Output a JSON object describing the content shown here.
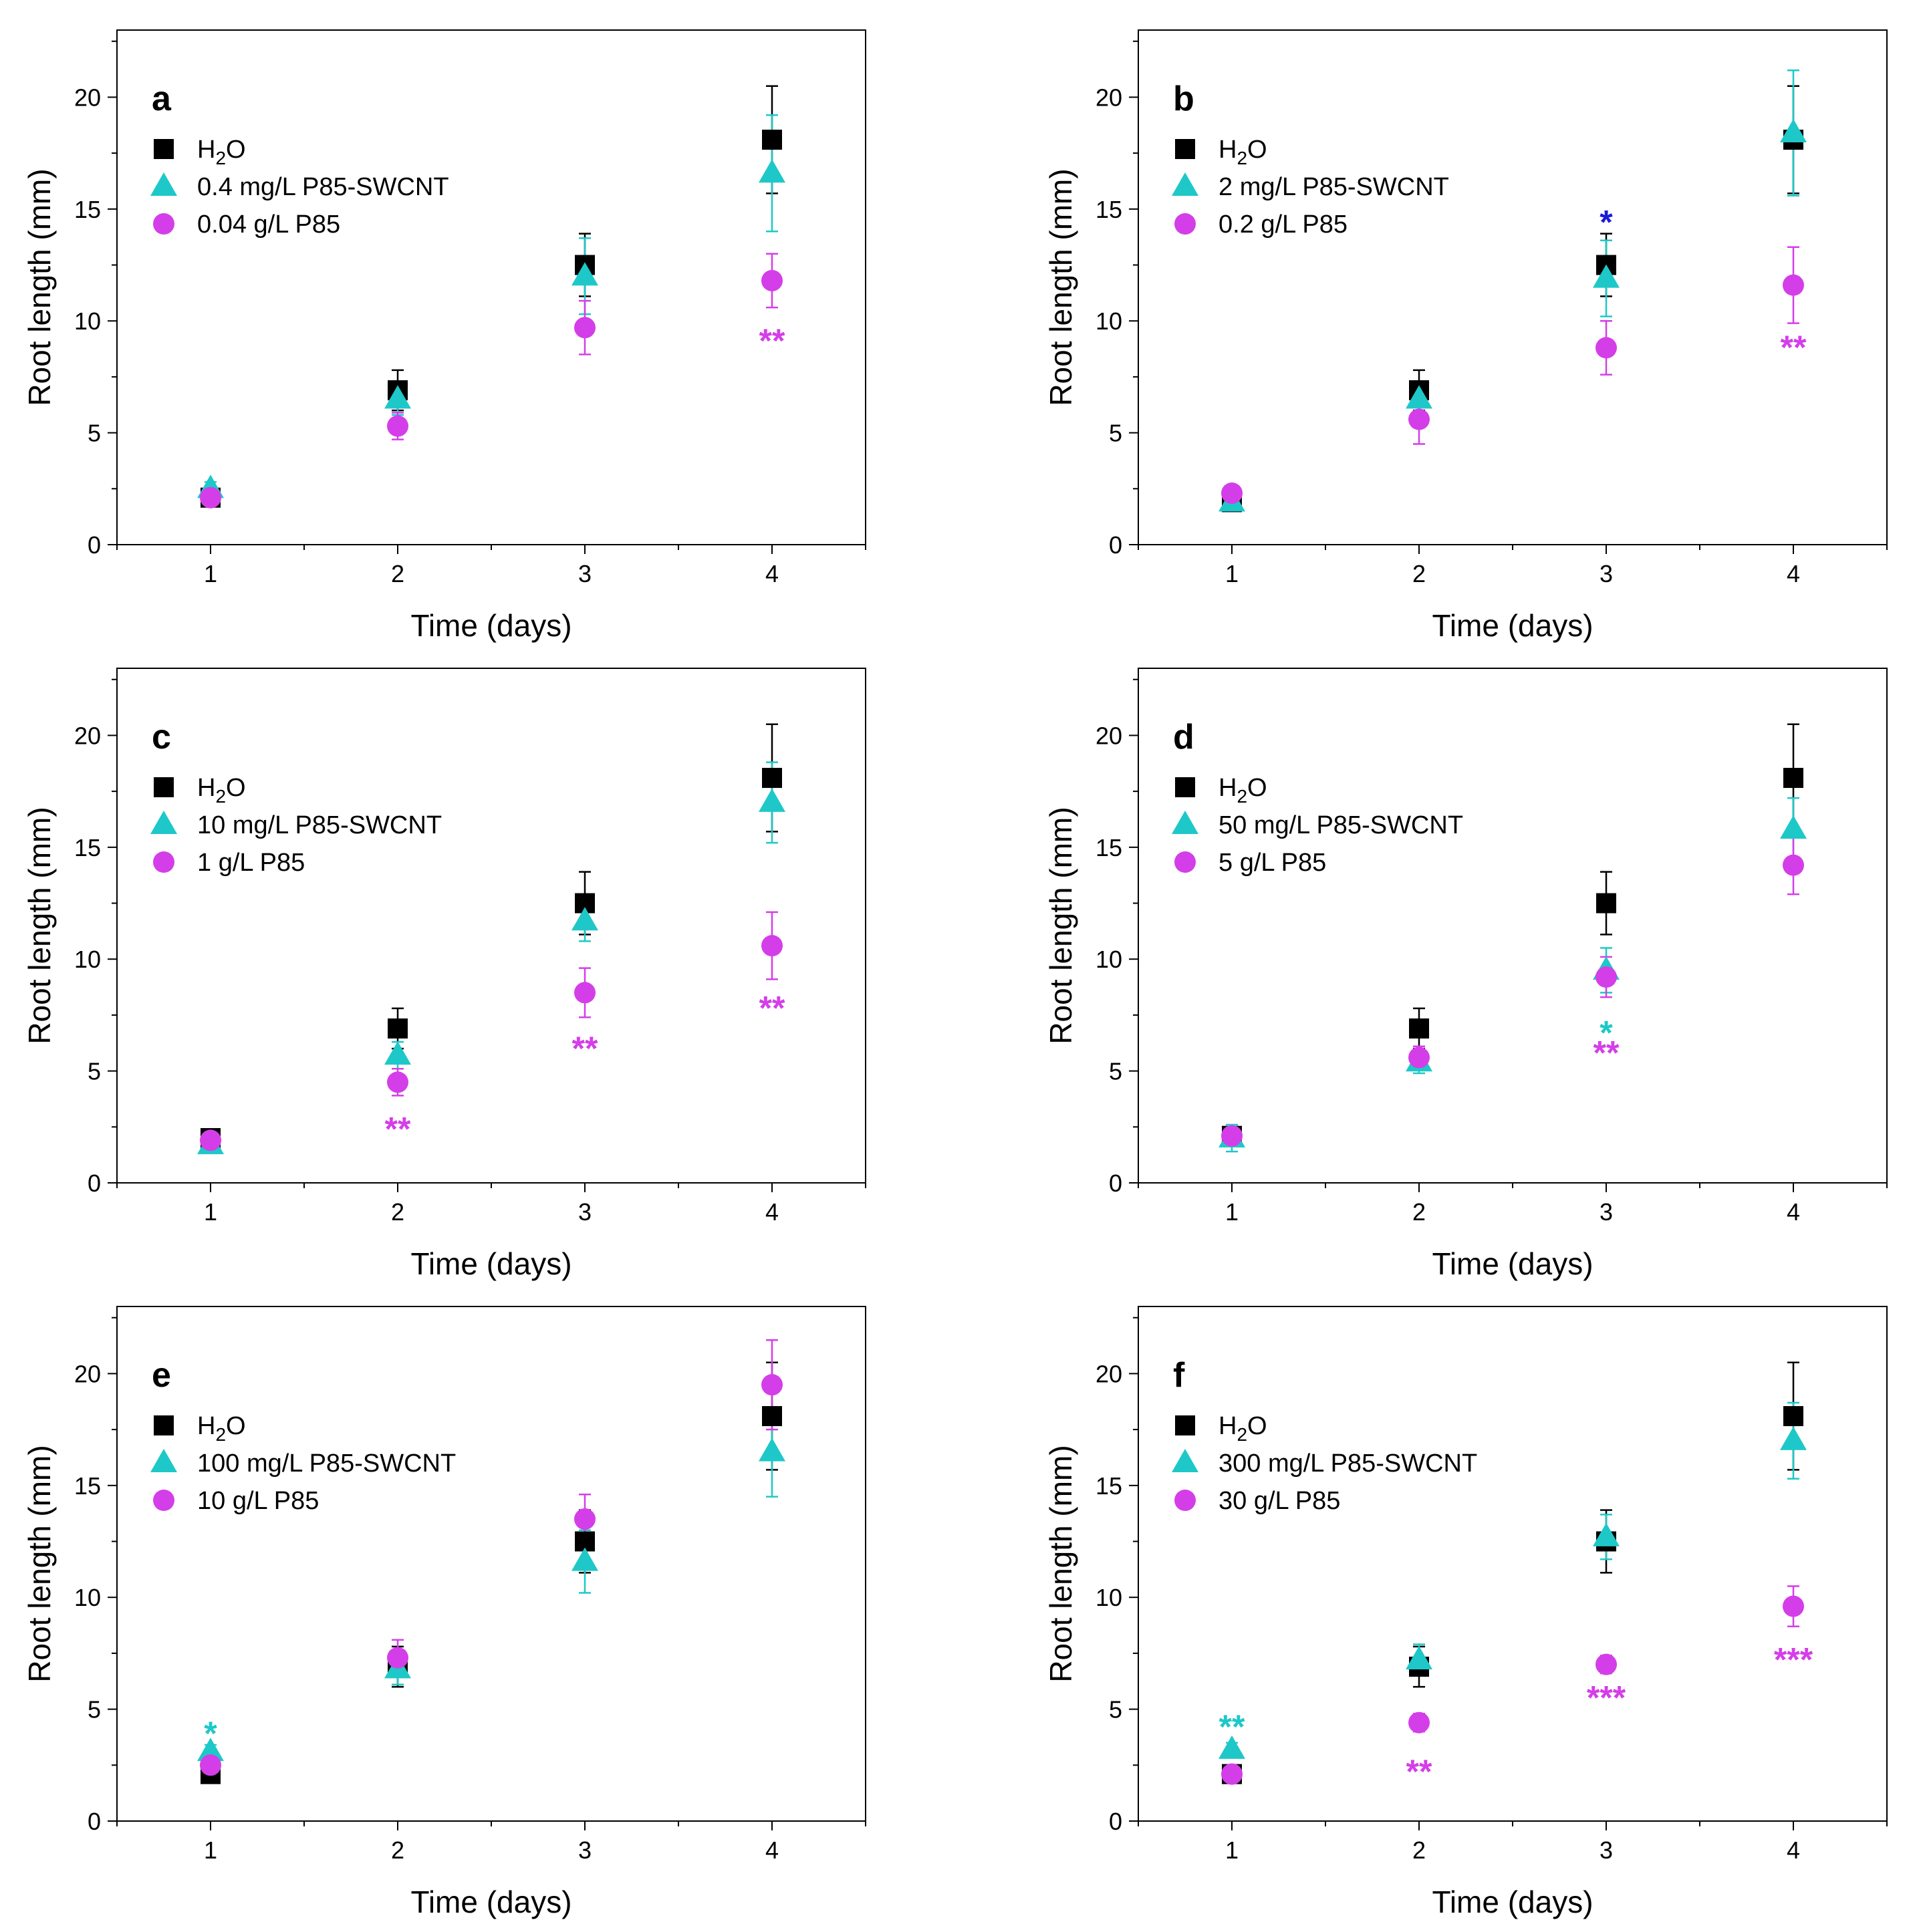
{
  "chart_data": [
    {
      "type": "scatter",
      "panel_label": "a",
      "xlabel": "Time (days)",
      "ylabel": "Root length (mm)",
      "xlim": [
        0.5,
        4.5
      ],
      "ylim": [
        0,
        23
      ],
      "x_ticks": [
        1,
        2,
        3,
        4
      ],
      "y_ticks": [
        0,
        5,
        10,
        15,
        20
      ],
      "legend_placement": "top-left",
      "series": [
        {
          "name": "H₂O",
          "marker": "square",
          "color": "#000000",
          "x": [
            1,
            2,
            3,
            4
          ],
          "y": [
            2.1,
            6.9,
            12.5,
            18.1
          ],
          "err": [
            0.3,
            0.9,
            1.4,
            2.4
          ]
        },
        {
          "name": "0.4 mg/L P85-SWCNT",
          "marker": "triangle",
          "color": "#1ec8c8",
          "x": [
            1,
            2,
            3,
            4
          ],
          "y": [
            2.5,
            6.5,
            12.0,
            16.6
          ],
          "err": [
            0.3,
            0.7,
            1.7,
            2.6
          ]
        },
        {
          "name": "0.04 g/L P85",
          "marker": "circle",
          "color": "#d43ee8",
          "x": [
            1,
            2,
            3,
            4
          ],
          "y": [
            2.1,
            5.3,
            9.7,
            11.8
          ],
          "err": [
            0.3,
            0.6,
            1.2,
            1.2
          ]
        }
      ],
      "annotations": [
        {
          "x": 4,
          "y": 9.2,
          "text": "**",
          "color": "#d43ee8"
        }
      ]
    },
    {
      "type": "scatter",
      "panel_label": "b",
      "xlabel": "Time (days)",
      "ylabel": "Root length (mm)",
      "xlim": [
        0.5,
        4.5
      ],
      "ylim": [
        0,
        23
      ],
      "x_ticks": [
        1,
        2,
        3,
        4
      ],
      "y_ticks": [
        0,
        5,
        10,
        15,
        20
      ],
      "legend_placement": "top-left",
      "series": [
        {
          "name": "H₂O",
          "marker": "square",
          "color": "#000000",
          "x": [
            1,
            2,
            3,
            4
          ],
          "y": [
            1.9,
            6.9,
            12.5,
            18.1
          ],
          "err": [
            0.3,
            0.9,
            1.4,
            2.4
          ]
        },
        {
          "name": "2 mg/L P85-SWCNT",
          "marker": "triangle",
          "color": "#1ec8c8",
          "x": [
            1,
            2,
            3,
            4
          ],
          "y": [
            1.9,
            6.5,
            11.9,
            18.4
          ],
          "err": [
            0.3,
            0.7,
            1.7,
            2.8
          ]
        },
        {
          "name": "0.2 g/L P85",
          "marker": "circle",
          "color": "#d43ee8",
          "x": [
            1,
            2,
            3,
            4
          ],
          "y": [
            2.3,
            5.6,
            8.8,
            11.6
          ],
          "err": [
            0.3,
            1.1,
            1.2,
            1.7
          ]
        }
      ],
      "annotations": [
        {
          "x": 3,
          "y": 14.5,
          "text": "*",
          "color": "#1a1ad8"
        },
        {
          "x": 4,
          "y": 8.9,
          "text": "**",
          "color": "#d43ee8"
        }
      ]
    },
    {
      "type": "scatter",
      "panel_label": "c",
      "xlabel": "Time (days)",
      "ylabel": "Root length (mm)",
      "xlim": [
        0.5,
        4.5
      ],
      "ylim": [
        0,
        23
      ],
      "x_ticks": [
        1,
        2,
        3,
        4
      ],
      "y_ticks": [
        0,
        5,
        10,
        15,
        20
      ],
      "legend_placement": "top-left",
      "series": [
        {
          "name": "H₂O",
          "marker": "square",
          "color": "#000000",
          "x": [
            1,
            2,
            3,
            4
          ],
          "y": [
            2.0,
            6.9,
            12.5,
            18.1
          ],
          "err": [
            0.3,
            0.9,
            1.4,
            2.4
          ]
        },
        {
          "name": "10 mg/L P85-SWCNT",
          "marker": "triangle",
          "color": "#1ec8c8",
          "x": [
            1,
            2,
            3,
            4
          ],
          "y": [
            1.7,
            5.7,
            11.7,
            17.0
          ],
          "err": [
            0.3,
            0.6,
            0.9,
            1.8
          ]
        },
        {
          "name": "1 g/L P85",
          "marker": "circle",
          "color": "#d43ee8",
          "x": [
            1,
            2,
            3,
            4
          ],
          "y": [
            1.9,
            4.5,
            8.5,
            10.6
          ],
          "err": [
            0.3,
            0.6,
            1.1,
            1.5
          ]
        }
      ],
      "annotations": [
        {
          "x": 2,
          "y": 2.5,
          "text": "**",
          "color": "#d43ee8"
        },
        {
          "x": 3,
          "y": 6.1,
          "text": "**",
          "color": "#d43ee8"
        },
        {
          "x": 4,
          "y": 7.9,
          "text": "**",
          "color": "#d43ee8"
        }
      ]
    },
    {
      "type": "scatter",
      "panel_label": "d",
      "xlabel": "Time (days)",
      "ylabel": "Root length (mm)",
      "xlim": [
        0.5,
        4.5
      ],
      "ylim": [
        0,
        23
      ],
      "x_ticks": [
        1,
        2,
        3,
        4
      ],
      "y_ticks": [
        0,
        5,
        10,
        15,
        20
      ],
      "legend_placement": "top-left",
      "series": [
        {
          "name": "H₂O",
          "marker": "square",
          "color": "#000000",
          "x": [
            1,
            2,
            3,
            4
          ],
          "y": [
            2.1,
            6.9,
            12.5,
            18.1
          ],
          "err": [
            0.3,
            0.9,
            1.4,
            2.4
          ]
        },
        {
          "name": "50 mg/L P85-SWCNT",
          "marker": "triangle",
          "color": "#1ec8c8",
          "x": [
            1,
            2,
            3,
            4
          ],
          "y": [
            2.0,
            5.4,
            9.5,
            15.8
          ],
          "err": [
            0.6,
            0.5,
            1.0,
            1.4
          ]
        },
        {
          "name": "5 g/L P85",
          "marker": "circle",
          "color": "#d43ee8",
          "x": [
            1,
            2,
            3,
            4
          ],
          "y": [
            2.1,
            5.6,
            9.2,
            14.2
          ],
          "err": [
            0.3,
            0.5,
            0.9,
            1.3
          ]
        }
      ],
      "annotations": [
        {
          "x": 3,
          "y": 6.8,
          "text": "*",
          "color": "#1ec8c8"
        },
        {
          "x": 3,
          "y": 5.9,
          "text": "**",
          "color": "#d43ee8"
        }
      ]
    },
    {
      "type": "scatter",
      "panel_label": "e",
      "xlabel": "Time (days)",
      "ylabel": "Root length (mm)",
      "xlim": [
        0.5,
        4.5
      ],
      "ylim": [
        0,
        23
      ],
      "x_ticks": [
        1,
        2,
        3,
        4
      ],
      "y_ticks": [
        0,
        5,
        10,
        15,
        20
      ],
      "legend_placement": "top-left",
      "series": [
        {
          "name": "H₂O",
          "marker": "square",
          "color": "#000000",
          "x": [
            1,
            2,
            3,
            4
          ],
          "y": [
            2.1,
            6.9,
            12.5,
            18.1
          ],
          "err": [
            0.3,
            0.9,
            1.4,
            2.4
          ]
        },
        {
          "name": "100 mg/L P85-SWCNT",
          "marker": "triangle",
          "color": "#1ec8c8",
          "x": [
            1,
            2,
            3,
            4
          ],
          "y": [
            3.1,
            6.8,
            11.6,
            16.5
          ],
          "err": [
            0.3,
            0.7,
            1.4,
            2.0
          ]
        },
        {
          "name": "10 g/L P85",
          "marker": "circle",
          "color": "#d43ee8",
          "x": [
            1,
            2,
            3,
            4
          ],
          "y": [
            2.5,
            7.3,
            13.5,
            19.5
          ],
          "err": [
            0.3,
            0.8,
            1.1,
            2.0
          ]
        }
      ],
      "annotations": [
        {
          "x": 1,
          "y": 4.0,
          "text": "*",
          "color": "#1ec8c8"
        }
      ]
    },
    {
      "type": "scatter",
      "panel_label": "f",
      "xlabel": "Time (days)",
      "ylabel": "Root length (mm)",
      "xlim": [
        0.5,
        4.5
      ],
      "ylim": [
        0,
        23
      ],
      "x_ticks": [
        1,
        2,
        3,
        4
      ],
      "y_ticks": [
        0,
        5,
        10,
        15,
        20
      ],
      "legend_placement": "top-left",
      "series": [
        {
          "name": "H₂O",
          "marker": "square",
          "color": "#000000",
          "x": [
            1,
            2,
            3,
            4
          ],
          "y": [
            2.1,
            6.9,
            12.5,
            18.1
          ],
          "err": [
            0.3,
            0.9,
            1.4,
            2.4
          ]
        },
        {
          "name": "300 mg/L P85-SWCNT",
          "marker": "triangle",
          "color": "#1ec8c8",
          "x": [
            1,
            2,
            3,
            4
          ],
          "y": [
            3.2,
            7.2,
            12.7,
            17.0
          ],
          "err": [
            0.3,
            0.7,
            1.0,
            1.7
          ]
        },
        {
          "name": "30 g/L P85",
          "marker": "circle",
          "color": "#d43ee8",
          "x": [
            1,
            2,
            3,
            4
          ],
          "y": [
            2.1,
            4.4,
            7.0,
            9.6
          ],
          "err": [
            0.3,
            0.4,
            0.4,
            0.9
          ]
        }
      ],
      "annotations": [
        {
          "x": 1,
          "y": 4.3,
          "text": "**",
          "color": "#1ec8c8"
        },
        {
          "x": 2,
          "y": 2.3,
          "text": "**",
          "color": "#d43ee8"
        },
        {
          "x": 3,
          "y": 5.6,
          "text": "***",
          "color": "#d43ee8"
        },
        {
          "x": 4,
          "y": 7.3,
          "text": "***",
          "color": "#d43ee8"
        }
      ]
    }
  ]
}
